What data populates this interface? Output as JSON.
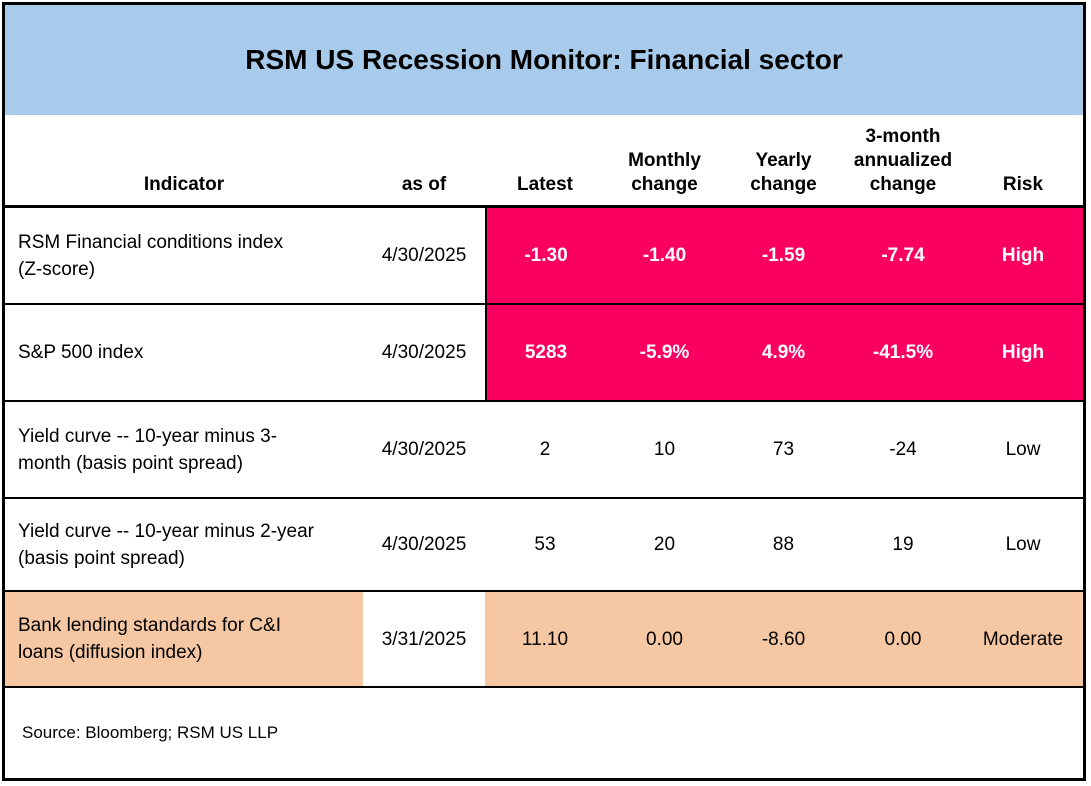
{
  "title": "RSM US Recession Monitor: Financial sector",
  "source_note": "Source: Bloomberg; RSM US LLP",
  "colors": {
    "header_band_blue": "#A8CBEC",
    "high_pink": "#FA0060",
    "moderate_peach": "#F5C7A3",
    "line_black": "#000000",
    "text_on_high": "#FFFFFF"
  },
  "chart_data": {
    "type": "table",
    "title": "RSM US Recession Monitor: Financial sector",
    "columns": [
      "Indicator",
      "as of",
      "Latest",
      "Monthly\nchange",
      "Yearly\nchange",
      "3-month\nannualized\nchange",
      "Risk"
    ],
    "rows": [
      {
        "indicator": "RSM Financial conditions index\n(Z-score)",
        "as_of": "4/30/2025",
        "latest": "-1.30",
        "monthly_change": "-1.40",
        "yearly_change": "-1.59",
        "annualized_3m_change": "-7.74",
        "risk": "High",
        "highlight": "high"
      },
      {
        "indicator": "S&P 500 index",
        "as_of": "4/30/2025",
        "latest": "5283",
        "monthly_change": "-5.9%",
        "yearly_change": "4.9%",
        "annualized_3m_change": "-41.5%",
        "risk": "High",
        "highlight": "high"
      },
      {
        "indicator": "Yield curve -- 10-year minus 3-\nmonth (basis point spread)",
        "as_of": "4/30/2025",
        "latest": "2",
        "monthly_change": "10",
        "yearly_change": "73",
        "annualized_3m_change": "-24",
        "risk": "Low",
        "highlight": "none"
      },
      {
        "indicator": "Yield curve -- 10-year minus 2-year\n(basis point spread)",
        "as_of": "4/30/2025",
        "latest": "53",
        "monthly_change": "20",
        "yearly_change": "88",
        "annualized_3m_change": "19",
        "risk": "Low",
        "highlight": "none"
      },
      {
        "indicator": "Bank lending standards for C&I\nloans (diffusion index)",
        "as_of": "3/31/2025",
        "latest": "11.10",
        "monthly_change": "0.00",
        "yearly_change": "-8.60",
        "annualized_3m_change": "0.00",
        "risk": "Moderate",
        "highlight": "moderate"
      }
    ]
  }
}
